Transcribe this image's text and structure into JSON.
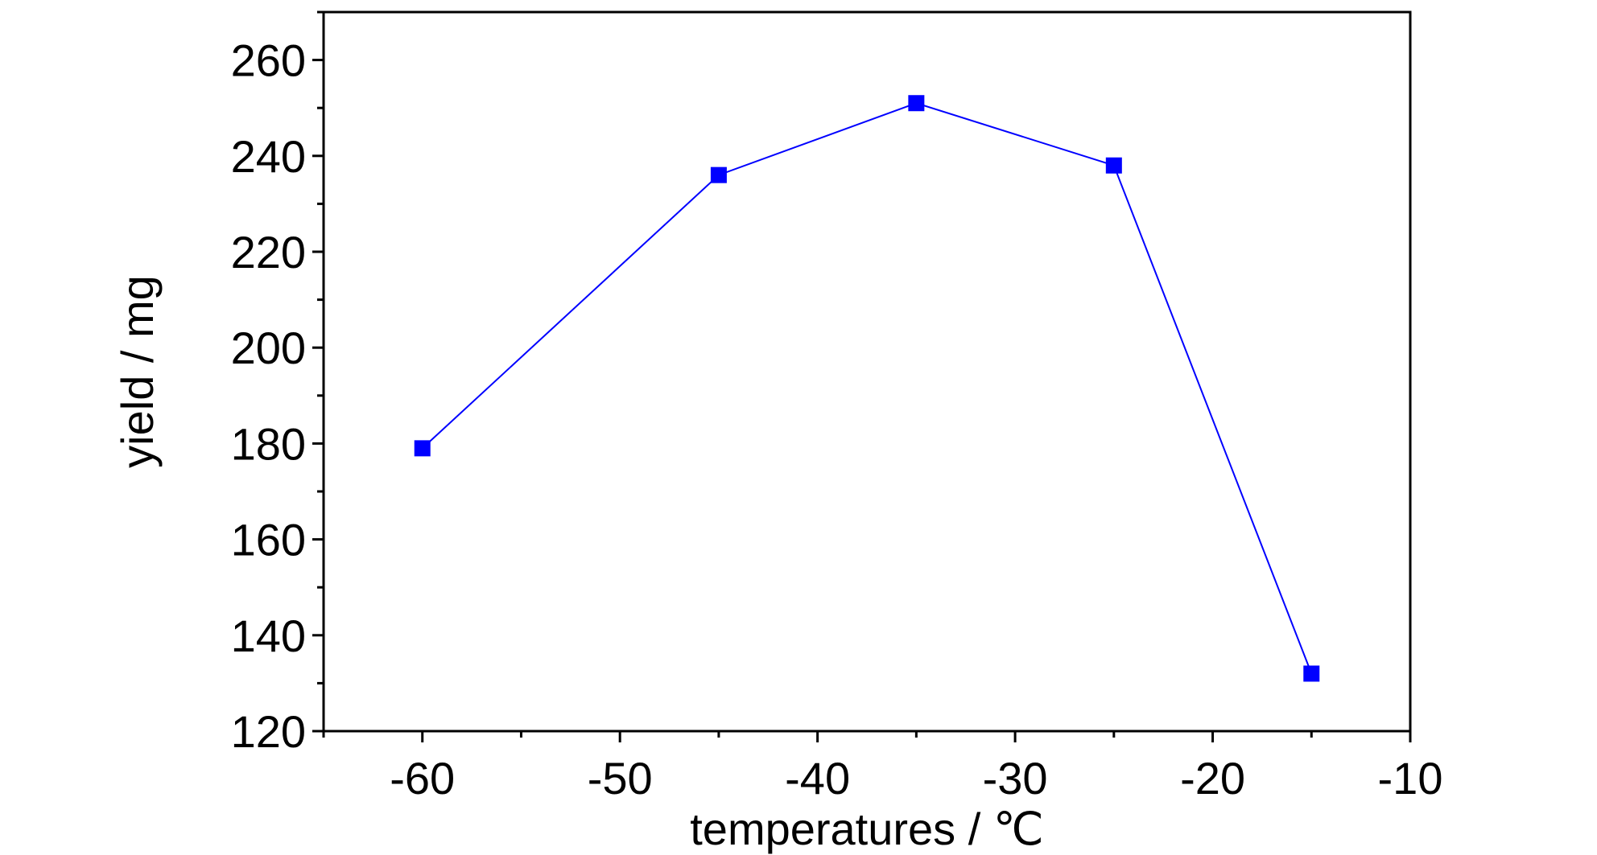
{
  "chart_data": {
    "type": "line",
    "xlabel": "temperatures / ℃",
    "ylabel": "yield / mg",
    "xlim": [
      -65,
      -10
    ],
    "ylim": [
      120,
      270
    ],
    "xticks": [
      -60,
      -50,
      -40,
      -30,
      -20,
      -10
    ],
    "yticks": [
      120,
      140,
      160,
      180,
      200,
      220,
      240,
      260
    ],
    "x_minor_step": 5,
    "y_minor_step": 10,
    "grid": false,
    "series": [
      {
        "x": [
          -60,
          -45,
          -35,
          -25,
          -15
        ],
        "y": [
          179,
          236,
          251,
          238,
          132
        ],
        "color": "#0000ff",
        "marker": "square"
      }
    ]
  }
}
